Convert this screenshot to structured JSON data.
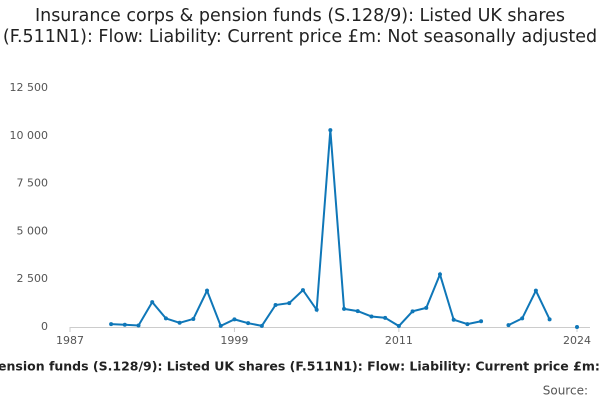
{
  "chart_data": {
    "type": "line",
    "title": "Insurance corps & pension funds (S.128/9): Listed UK shares (F.511N1): Flow: Liability: Current price £m: Not seasonally adjusted",
    "x_label": "ension funds (S.128/9): Listed UK shares (F.511N1): Flow: Liability: Current price £m: N",
    "source": "Source:",
    "x": [
      1990,
      1991,
      1992,
      1993,
      1994,
      1995,
      1996,
      1997,
      1998,
      1999,
      2000,
      2001,
      2002,
      2003,
      2004,
      2005,
      2006,
      2007,
      2008,
      2009,
      2010,
      2011,
      2012,
      2013,
      2014,
      2015,
      2016,
      2017,
      2018,
      2019,
      2020,
      2021,
      2022,
      2023,
      2024
    ],
    "values": [
      150,
      120,
      80,
      1300,
      450,
      220,
      420,
      1900,
      60,
      400,
      200,
      60,
      1150,
      1250,
      1930,
      900,
      10300,
      950,
      830,
      550,
      480,
      50,
      820,
      1000,
      2750,
      380,
      150,
      300,
      null,
      100,
      450,
      1900,
      400,
      null,
      0
    ],
    "color": "#0f77b8",
    "xlim": [
      1987,
      2024
    ],
    "xticks": [
      1987,
      1999,
      2011,
      2024
    ],
    "ylim": [
      0,
      12500
    ],
    "yticks": [
      0,
      {
        "value": 2500,
        "label": "2 500"
      },
      {
        "value": 5000,
        "label": "5 000"
      },
      {
        "value": 7500,
        "label": "7 500"
      },
      {
        "value": 10000,
        "label": "10 000"
      },
      {
        "value": 12500,
        "label": "12 500"
      }
    ],
    "grid": false
  }
}
